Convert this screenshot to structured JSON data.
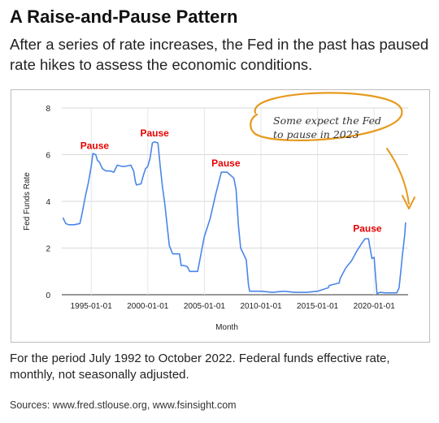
{
  "title": "A Raise-and-Pause Pattern",
  "subtitle": "After a series of rate increases, the Fed in the past has paused rate hikes to assess the economic conditions.",
  "caption": "For the period July 1992 to October 2022. Federal funds effective rate, monthly, not seasonally adjusted.",
  "sources": "Sources: www.fred.stlouse.org, www.fsinsight.com",
  "chart_data": {
    "type": "line",
    "xlabel": "Month",
    "ylabel": "Fed Funds Rate",
    "ylim": [
      0,
      8
    ],
    "yticks": [
      "0",
      "2",
      "4",
      "6",
      "8"
    ],
    "xticks": [
      "1995-01-01",
      "2000-01-01",
      "2005-01-01",
      "2010-01-01",
      "2015-01-01",
      "2020-01-01"
    ],
    "grid": true,
    "line_color": "#4a86e8",
    "annotation_color": "#e69a1e",
    "pause_color": "#e60000",
    "annotation": [
      "Some expect the Fed",
      "to pause in 2023"
    ],
    "pause_labels": [
      {
        "text": "Pause",
        "x": 1995.3,
        "y": 6.1
      },
      {
        "text": "Pause",
        "x": 2000.6,
        "y": 6.65
      },
      {
        "text": "Pause",
        "x": 2006.9,
        "y": 5.35
      },
      {
        "text": "Pause",
        "x": 2019.4,
        "y": 2.55
      }
    ],
    "series": [
      {
        "x": [
          1992.5,
          1992.75,
          1993.0,
          1993.5,
          1994.0,
          1994.2,
          1994.5,
          1994.75,
          1995.0,
          1995.15,
          1995.4,
          1995.55,
          1995.7,
          1996.0,
          1996.3,
          1996.7,
          1997.0,
          1997.3,
          1997.7,
          1998.0,
          1998.5,
          1998.75,
          1998.9,
          1999.0,
          1999.4,
          1999.6,
          1999.8,
          2000.0,
          2000.2,
          2000.4,
          2000.6,
          2000.9,
          2001.0,
          2001.1,
          2001.3,
          2001.5,
          2001.7,
          2001.9,
          2002.2,
          2002.8,
          2002.95,
          2003.2,
          2003.5,
          2003.7,
          2004.0,
          2004.4,
          2004.5,
          2004.8,
          2005.0,
          2005.5,
          2006.0,
          2006.5,
          2006.6,
          2007.0,
          2007.6,
          2007.8,
          2008.0,
          2008.2,
          2008.7,
          2008.9,
          2009.0,
          2010.0,
          2011.0,
          2012.0,
          2013.0,
          2014.0,
          2015.0,
          2015.95,
          2016.05,
          2016.9,
          2017.0,
          2017.5,
          2018.0,
          2018.5,
          2018.9,
          2019.2,
          2019.5,
          2019.6,
          2019.8,
          2020.0,
          2020.15,
          2020.25,
          2020.5,
          2021.0,
          2021.5,
          2022.0,
          2022.2,
          2022.4,
          2022.5,
          2022.7,
          2022.78
        ],
        "y": [
          3.3,
          3.05,
          3.0,
          3.0,
          3.05,
          3.5,
          4.25,
          4.8,
          5.5,
          6.05,
          6.0,
          5.75,
          5.7,
          5.4,
          5.3,
          5.3,
          5.25,
          5.55,
          5.5,
          5.5,
          5.55,
          5.3,
          4.85,
          4.7,
          4.75,
          5.1,
          5.4,
          5.5,
          5.85,
          6.5,
          6.55,
          6.5,
          6.0,
          5.5,
          4.6,
          3.9,
          3.0,
          2.1,
          1.75,
          1.75,
          1.25,
          1.25,
          1.2,
          1.0,
          1.0,
          1.0,
          1.25,
          2.0,
          2.5,
          3.25,
          4.3,
          5.25,
          5.25,
          5.25,
          5.0,
          4.5,
          3.0,
          2.0,
          1.5,
          0.4,
          0.15,
          0.15,
          0.1,
          0.15,
          0.1,
          0.1,
          0.15,
          0.3,
          0.4,
          0.5,
          0.7,
          1.15,
          1.45,
          1.9,
          2.2,
          2.4,
          2.4,
          2.1,
          1.55,
          1.6,
          0.65,
          0.05,
          0.1,
          0.08,
          0.08,
          0.08,
          0.3,
          1.2,
          1.7,
          2.55,
          3.1
        ]
      }
    ]
  }
}
